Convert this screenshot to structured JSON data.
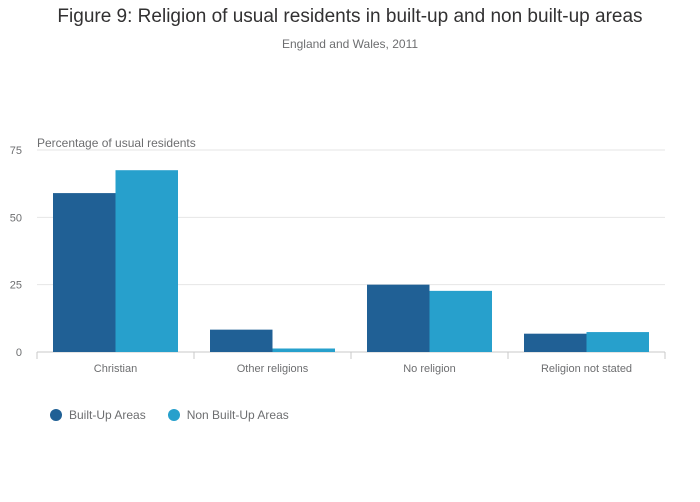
{
  "title": "Figure 9: Religion of usual residents in built-up and non built-up areas",
  "subtitle": "England and Wales, 2011",
  "colors": {
    "built_up": "#206095",
    "non_built_up": "#27a0cc",
    "grid": "#e6e6e6",
    "axis": "#c9c9c9"
  },
  "legend": [
    {
      "label": "Built-Up Areas",
      "color": "#206095"
    },
    {
      "label": "Non Built-Up Areas",
      "color": "#27a0cc"
    }
  ],
  "chart_data": {
    "type": "bar",
    "title": "Figure 9: Religion of usual residents in built-up and non built-up areas",
    "subtitle": "England and Wales, 2011",
    "xlabel": "",
    "ylabel": "Percentage of usual residents",
    "ylim": [
      0,
      75
    ],
    "yticks": [
      0,
      25,
      50,
      75
    ],
    "grid": true,
    "legend_position": "bottom-left",
    "categories": [
      "Christian",
      "Other religions",
      "No religion",
      "Religion not stated"
    ],
    "series": [
      {
        "name": "Built-Up Areas",
        "values": [
          59,
          8.3,
          25,
          6.8
        ]
      },
      {
        "name": "Non Built-Up Areas",
        "values": [
          67.5,
          1.3,
          22.7,
          7.4
        ]
      }
    ]
  }
}
